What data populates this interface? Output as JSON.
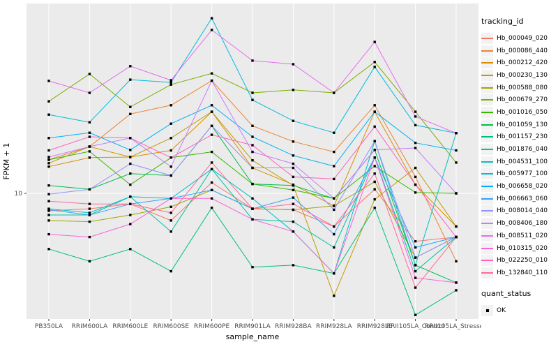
{
  "figure": {
    "panel_bg": "#EBEBEB",
    "grid_color": "#FFFFFF",
    "tick_color": "#333333",
    "axis_text_color": "#4D4D4D",
    "axis_title_color": "#000000",
    "point_color": "#000000",
    "legend_key_bg": "#F2F2F2"
  },
  "chart_data": {
    "type": "line",
    "title": "",
    "xlabel": "sample_name",
    "ylabel": "FPKM + 1",
    "y_scale": "log10",
    "y_ticks": [
      10
    ],
    "y_tick_labels": [
      "10"
    ],
    "ylim_approx": [
      2,
      90
    ],
    "grid": true,
    "legend_position": "right",
    "legend_series_title": "tracking_id",
    "legend_points_title": "quant_status",
    "legend_point_label": "OK",
    "point_shape": "square",
    "categories": [
      "PB350LA",
      "RRIM600LA",
      "RRIM600LE",
      "RRIM600SE",
      "RRIM600PE",
      "RRIM901LA",
      "RRIM928BA",
      "RRIM928LA",
      "RRIM928LE",
      "RRII105LA_Control",
      "RRII105LA_Stressed"
    ],
    "series": [
      {
        "name": "Hb_000049_020",
        "color": "#F8766D",
        "values": [
          8.1,
          8.3,
          8.8,
          7.2,
          11.4,
          8.3,
          8.2,
          6.7,
          10.5,
          5.6,
          5.9
        ]
      },
      {
        "name": "Hb_000086_440",
        "color": "#EA8331",
        "values": [
          15.0,
          17.6,
          26.1,
          29.0,
          39.0,
          22.6,
          18.7,
          16.5,
          29.0,
          12.2,
          4.4
        ]
      },
      {
        "name": "Hb_000212_420",
        "color": "#D89000",
        "values": [
          13.8,
          15.4,
          15.5,
          16.8,
          26.8,
          13.6,
          11.1,
          8.6,
          26.8,
          11.1,
          6.7
        ]
      },
      {
        "name": "Hb_000230_130",
        "color": "#C09B00",
        "values": [
          14.4,
          17.6,
          15.5,
          19.5,
          26.8,
          14.9,
          11.0,
          2.9,
          9.3,
          13.6,
          6.7
        ]
      },
      {
        "name": "Hb_000588_080",
        "color": "#A3A500",
        "values": [
          7.2,
          7.1,
          7.7,
          8.5,
          10.4,
          8.3,
          8.2,
          8.6,
          11.5,
          4.6,
          5.9
        ]
      },
      {
        "name": "Hb_000679_270",
        "color": "#7CAE00",
        "values": [
          30.4,
          42.3,
          28.4,
          37.2,
          42.6,
          33.7,
          34.9,
          33.7,
          48.9,
          26.8,
          14.5
        ]
      },
      {
        "name": "Hb_001016_050",
        "color": "#39B600",
        "values": [
          15.0,
          16.6,
          11.1,
          15.4,
          16.5,
          11.2,
          10.4,
          9.4,
          13.9,
          10.1,
          10.0
        ]
      },
      {
        "name": "Hb_001059_130",
        "color": "#00BB4E",
        "values": [
          11.0,
          10.5,
          12.7,
          12.4,
          22.6,
          11.2,
          11.0,
          9.4,
          16.9,
          4.2,
          3.4
        ]
      },
      {
        "name": "Hb_001157_230",
        "color": "#00BF7D",
        "values": [
          5.1,
          4.4,
          5.1,
          3.9,
          8.4,
          4.1,
          4.2,
          3.8,
          8.4,
          2.3,
          3.1
        ]
      },
      {
        "name": "Hb_001876_040",
        "color": "#00C1A3",
        "values": [
          7.7,
          7.7,
          9.6,
          6.3,
          13.4,
          7.3,
          7.1,
          5.2,
          15.4,
          3.9,
          5.9
        ]
      },
      {
        "name": "Hb_004531_100",
        "color": "#00BFC4",
        "values": [
          8.3,
          7.9,
          9.6,
          9.4,
          13.4,
          9.4,
          6.3,
          3.8,
          18.8,
          4.2,
          20.7
        ]
      },
      {
        "name": "Hb_005977_100",
        "color": "#00BAE0",
        "values": [
          25.9,
          23.6,
          39.5,
          38.2,
          83.0,
          30.9,
          24.0,
          20.8,
          46.1,
          22.8,
          20.7
        ]
      },
      {
        "name": "Hb_006658_020",
        "color": "#00B0F6",
        "values": [
          19.5,
          20.8,
          16.9,
          23.2,
          29.0,
          19.8,
          15.8,
          13.9,
          26.8,
          18.4,
          16.8
        ]
      },
      {
        "name": "Hb_006663_060",
        "color": "#35A2FF",
        "values": [
          8.2,
          7.7,
          8.8,
          9.4,
          10.4,
          8.3,
          9.5,
          6.1,
          15.4,
          5.2,
          5.9
        ]
      },
      {
        "name": "Hb_008014_040",
        "color": "#9590FF",
        "values": [
          9.9,
          10.5,
          14.3,
          12.4,
          22.6,
          13.6,
          13.6,
          8.2,
          18.8,
          4.6,
          5.9
        ]
      },
      {
        "name": "Hb_008406_180",
        "color": "#C77CFF",
        "values": [
          15.5,
          17.6,
          19.5,
          13.8,
          39.0,
          16.5,
          14.3,
          9.4,
          16.9,
          17.3,
          10.0
        ]
      },
      {
        "name": "Hb_008511_020",
        "color": "#E76BF3",
        "values": [
          38.9,
          33.7,
          46.5,
          39.2,
          72.0,
          49.7,
          47.6,
          33.7,
          62.3,
          25.3,
          20.7
        ]
      },
      {
        "name": "Hb_010315_020",
        "color": "#FA62DB",
        "values": [
          6.1,
          5.9,
          6.9,
          9.4,
          9.4,
          7.3,
          6.3,
          3.8,
          15.4,
          3.6,
          3.4
        ]
      },
      {
        "name": "Hb_022250_010",
        "color": "#FF62BC",
        "values": [
          16.8,
          19.8,
          19.5,
          15.4,
          20.3,
          17.9,
          12.2,
          11.9,
          22.4,
          11.1,
          5.9
        ]
      },
      {
        "name": "Hb_132840_110",
        "color": "#FF6A98",
        "values": [
          9.1,
          8.8,
          8.8,
          7.9,
          14.5,
          8.3,
          8.8,
          6.7,
          12.7,
          3.2,
          5.9
        ]
      }
    ]
  }
}
